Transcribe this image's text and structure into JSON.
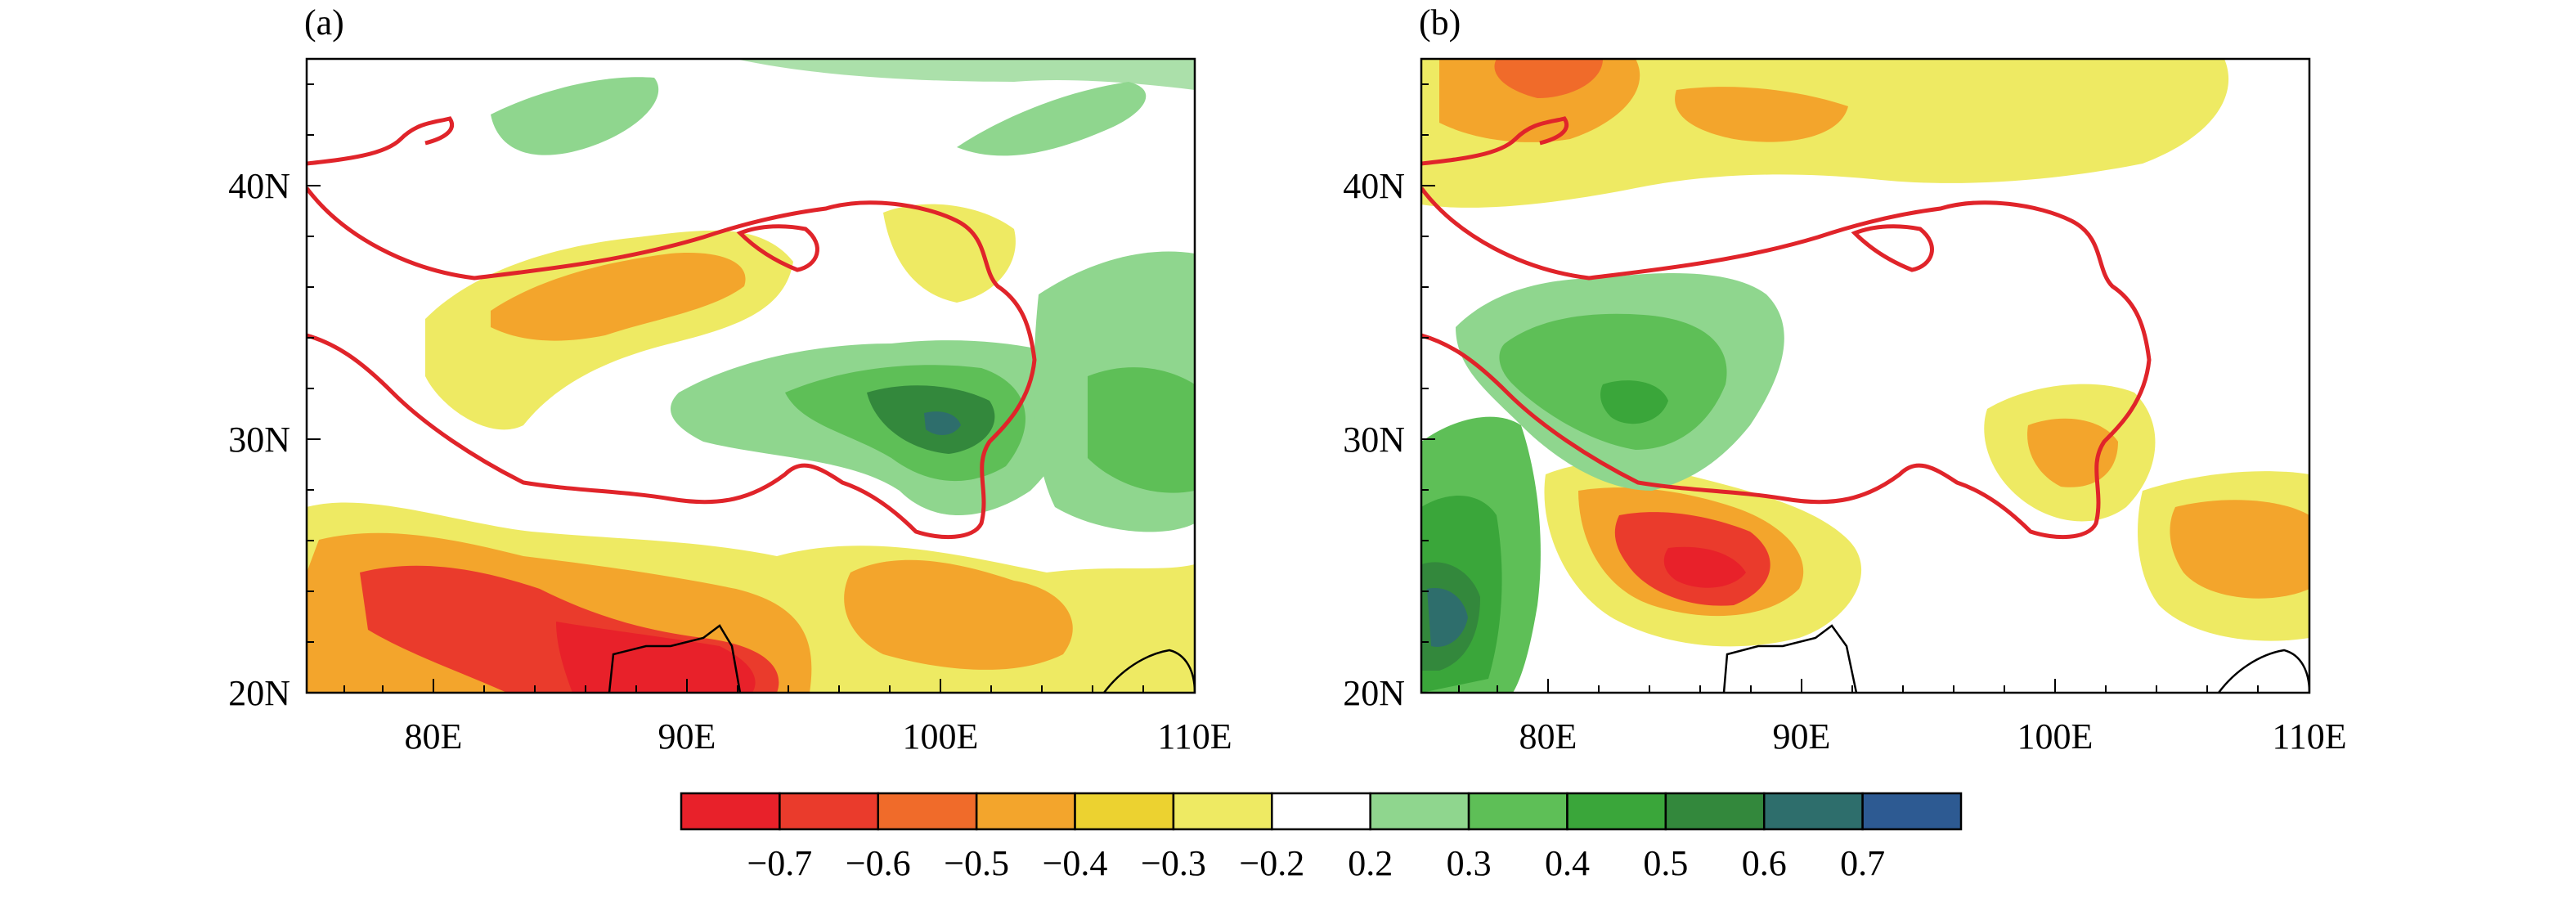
{
  "panels": [
    {
      "label": "(a)",
      "x_ticks": [
        "80E",
        "90E",
        "100E",
        "110E"
      ],
      "y_ticks": [
        "20N",
        "30N",
        "40N"
      ],
      "x_range_deg_E": [
        75,
        110
      ],
      "y_range_deg_N": [
        20,
        45
      ]
    },
    {
      "label": "(b)",
      "x_ticks": [
        "80E",
        "90E",
        "100E",
        "110E"
      ],
      "y_ticks": [
        "20N",
        "30N",
        "40N"
      ],
      "x_range_deg_E": [
        75,
        110
      ],
      "y_range_deg_N": [
        20,
        45
      ]
    }
  ],
  "colorbar": {
    "labels": [
      "−0.7",
      "−0.6",
      "−0.5",
      "−0.4",
      "−0.3",
      "−0.2",
      "0.2",
      "0.3",
      "0.4",
      "0.5",
      "0.6",
      "0.7"
    ],
    "colors": [
      "#e8212a",
      "#ea3b2c",
      "#f06b2a",
      "#f3a52c",
      "#ecd230",
      "#eeea63",
      "#ffffff",
      "#8fd68e",
      "#5ebf57",
      "#3aa63a",
      "#33883c",
      "#2e6e6c",
      "#2d5a92"
    ]
  },
  "colors": {
    "plateau_outline": "#e0242a",
    "coastline": "#000000"
  }
}
